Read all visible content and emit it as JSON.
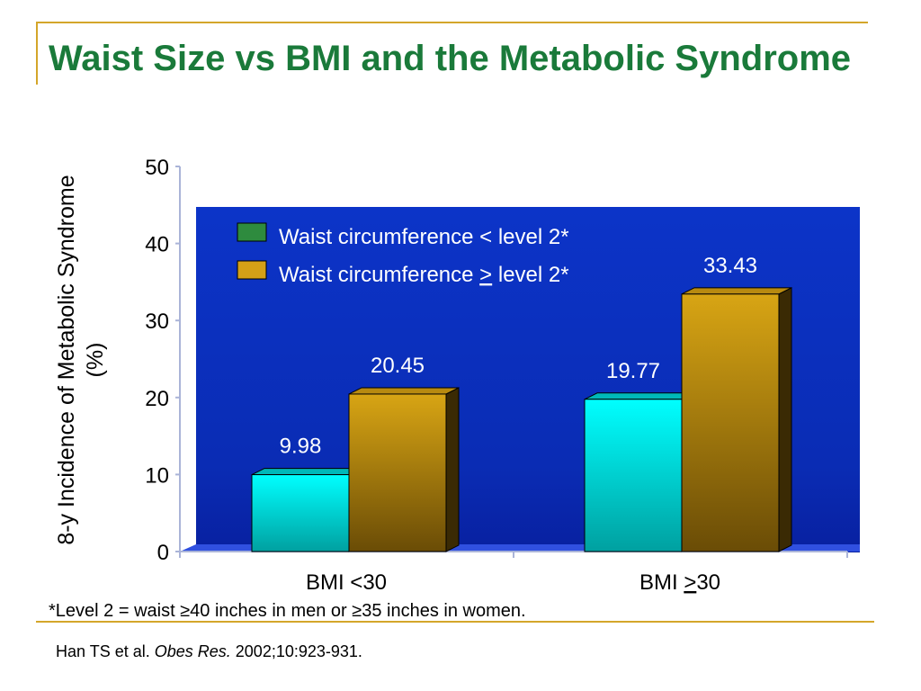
{
  "slide": {
    "title": "Waist Size vs BMI and the Metabolic Syndrome",
    "footnote": "*Level  2 = waist ≥40 inches in men or ≥35 inches in women.",
    "citation": {
      "authors": "Han TS et al. ",
      "journal": "Obes Res.",
      "details": " 2002;10:923-931."
    }
  },
  "chart_data": {
    "type": "bar",
    "ylabel": "8-y Incidence of Metabolic Syndrome (%)",
    "ylim": [
      0,
      50
    ],
    "yticks": [
      0,
      10,
      20,
      30,
      40,
      50
    ],
    "categories": [
      {
        "pre": "BMI <30",
        "ul": "",
        "post": ""
      },
      {
        "pre": "BMI ",
        "ul": ">",
        "post": "30"
      }
    ],
    "series": [
      {
        "name": {
          "pre": "Waist circumference < level 2*",
          "ul": "",
          "post": ""
        },
        "values": [
          9.98,
          19.77
        ],
        "color": "#00ffff",
        "legend_color": "#2e8b3e"
      },
      {
        "name": {
          "pre": "Waist circumference ",
          "ul": ">",
          "post": " level 2*"
        },
        "values": [
          20.45,
          33.43
        ],
        "color": "#c8960a",
        "legend_color": "#d4a017"
      }
    ],
    "data_labels": [
      [
        "9.98",
        "19.77"
      ],
      [
        "20.45",
        "33.43"
      ]
    ],
    "legend_placement": "top-left",
    "grid": false,
    "plot_background": "#1030c0"
  }
}
